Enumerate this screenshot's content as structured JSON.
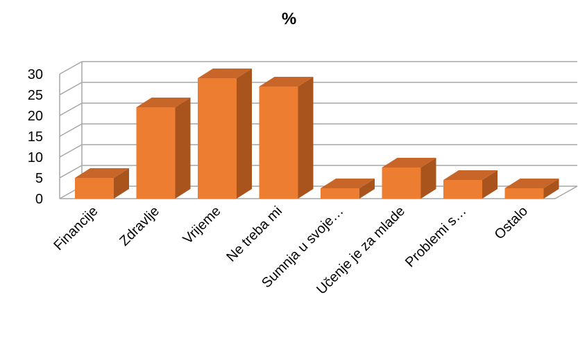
{
  "chart_data": {
    "type": "bar",
    "style": "3d-column",
    "title": "%",
    "categories": [
      "Financije",
      "Zdravlje",
      "Vrijeme",
      "Ne treba mi",
      "Sumnja u svoje…",
      "Učenje je za mlade",
      "Problemi s…",
      "Ostalo"
    ],
    "values": [
      5,
      22,
      29,
      27,
      2.5,
      7.5,
      4.5,
      2.5
    ],
    "ylim": [
      0,
      30
    ],
    "yticks": [
      "0",
      "5",
      "10",
      "15",
      "20",
      "25",
      "30"
    ],
    "grid": true,
    "legend": "none",
    "colors": {
      "front": "#ED7D31",
      "side": "#A9541C",
      "top": "#C8662A",
      "grid": "#A6A6A6"
    }
  }
}
